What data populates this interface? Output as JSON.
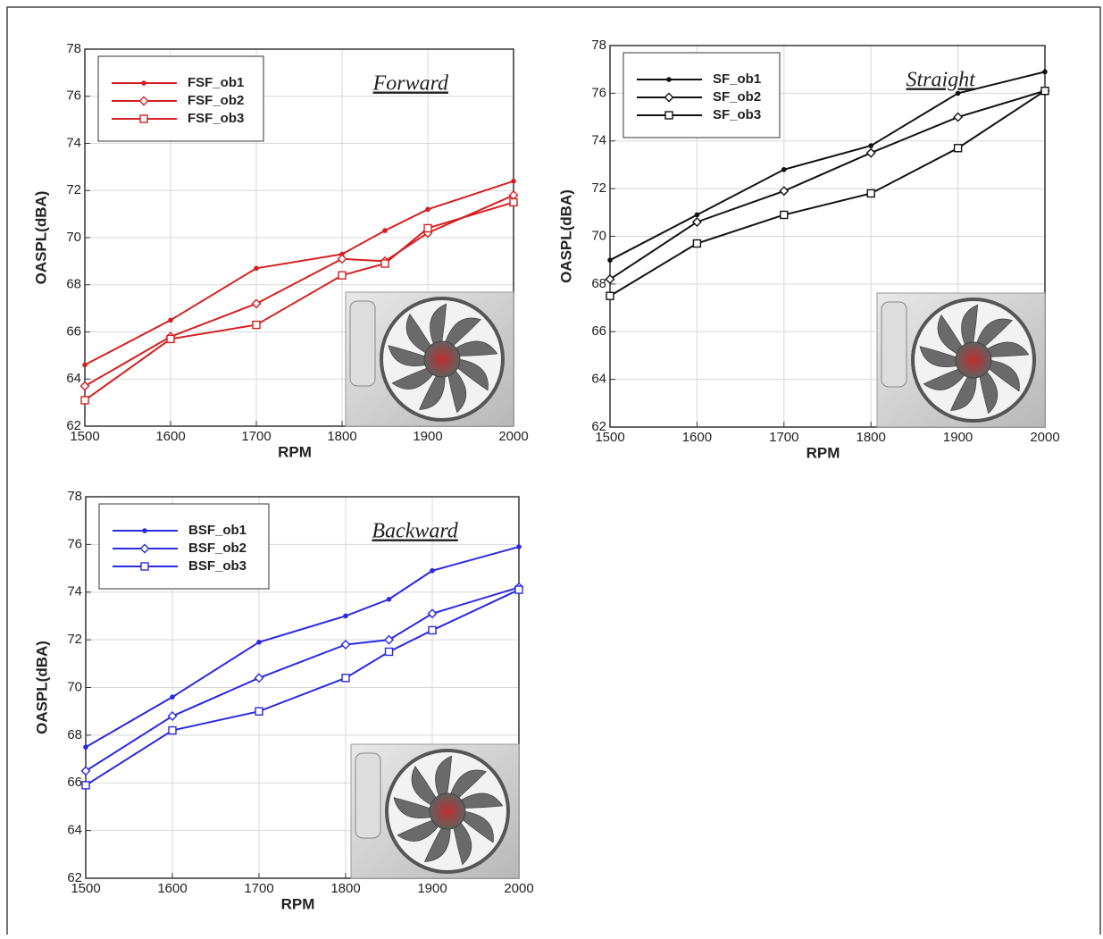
{
  "chart_data": [
    {
      "type": "line",
      "annotation": "Forward",
      "xlabel": "RPM",
      "ylabel": "OASPL(dBA)",
      "x": [
        1500,
        1600,
        1700,
        1800,
        1850,
        1900,
        2000
      ],
      "xlim": [
        1500,
        2000
      ],
      "xticks": [
        1500,
        1600,
        1700,
        1800,
        1900,
        2000
      ],
      "ylim": [
        62,
        78
      ],
      "yticks": [
        62,
        64,
        66,
        68,
        70,
        72,
        74,
        76,
        78
      ],
      "grid": true,
      "legend": "upper left",
      "series": [
        {
          "name": "FSF_ob1",
          "color": "#d42020",
          "marker": "dot",
          "values": [
            64.6,
            66.5,
            68.7,
            69.3,
            70.3,
            71.2,
            72.4
          ]
        },
        {
          "name": "FSF_ob2",
          "color": "#d42020",
          "marker": "diamond",
          "values": [
            63.7,
            65.8,
            67.2,
            69.1,
            69.0,
            70.2,
            71.8
          ]
        },
        {
          "name": "FSF_ob3",
          "color": "#d42020",
          "marker": "square",
          "values": [
            63.1,
            65.7,
            66.3,
            68.4,
            68.9,
            70.4,
            71.5
          ]
        }
      ]
    },
    {
      "type": "line",
      "annotation": "Straight",
      "xlabel": "RPM",
      "ylabel": "OASPL(dBA)",
      "x": [
        1500,
        1600,
        1700,
        1800,
        1900,
        2000
      ],
      "xlim": [
        1500,
        2000
      ],
      "xticks": [
        1500,
        1600,
        1700,
        1800,
        1900,
        2000
      ],
      "ylim": [
        62,
        78
      ],
      "yticks": [
        62,
        64,
        66,
        68,
        70,
        72,
        74,
        76,
        78
      ],
      "grid": true,
      "legend": "upper left",
      "series": [
        {
          "name": "SF_ob1",
          "color": "#111111",
          "marker": "dot",
          "values": [
            69.0,
            70.9,
            72.8,
            73.8,
            76.0,
            76.9
          ]
        },
        {
          "name": "SF_ob2",
          "color": "#111111",
          "marker": "diamond",
          "values": [
            68.2,
            70.6,
            71.9,
            73.5,
            75.0,
            76.1
          ]
        },
        {
          "name": "SF_ob3",
          "color": "#111111",
          "marker": "square",
          "values": [
            67.5,
            69.7,
            70.9,
            71.8,
            73.7,
            76.1
          ]
        }
      ]
    },
    {
      "type": "line",
      "annotation": "Backward",
      "xlabel": "RPM",
      "ylabel": "OASPL(dBA)",
      "x": [
        1500,
        1600,
        1700,
        1800,
        1850,
        1900,
        2000
      ],
      "xlim": [
        1500,
        2000
      ],
      "xticks": [
        1500,
        1600,
        1700,
        1800,
        1900,
        2000
      ],
      "ylim": [
        62,
        78
      ],
      "yticks": [
        62,
        64,
        66,
        68,
        70,
        72,
        74,
        76,
        78
      ],
      "grid": true,
      "legend": "upper left",
      "series": [
        {
          "name": "BSF_ob1",
          "color": "#2a2ae0",
          "marker": "dot",
          "values": [
            67.5,
            69.6,
            71.9,
            73.0,
            73.7,
            74.9,
            75.9
          ]
        },
        {
          "name": "BSF_ob2",
          "color": "#2a2ae0",
          "marker": "diamond",
          "values": [
            66.5,
            68.8,
            70.4,
            71.8,
            72.0,
            73.1,
            74.2
          ]
        },
        {
          "name": "BSF_ob3",
          "color": "#2a2ae0",
          "marker": "square",
          "values": [
            65.9,
            68.2,
            69.0,
            70.4,
            71.5,
            72.4,
            74.1
          ]
        }
      ]
    }
  ]
}
